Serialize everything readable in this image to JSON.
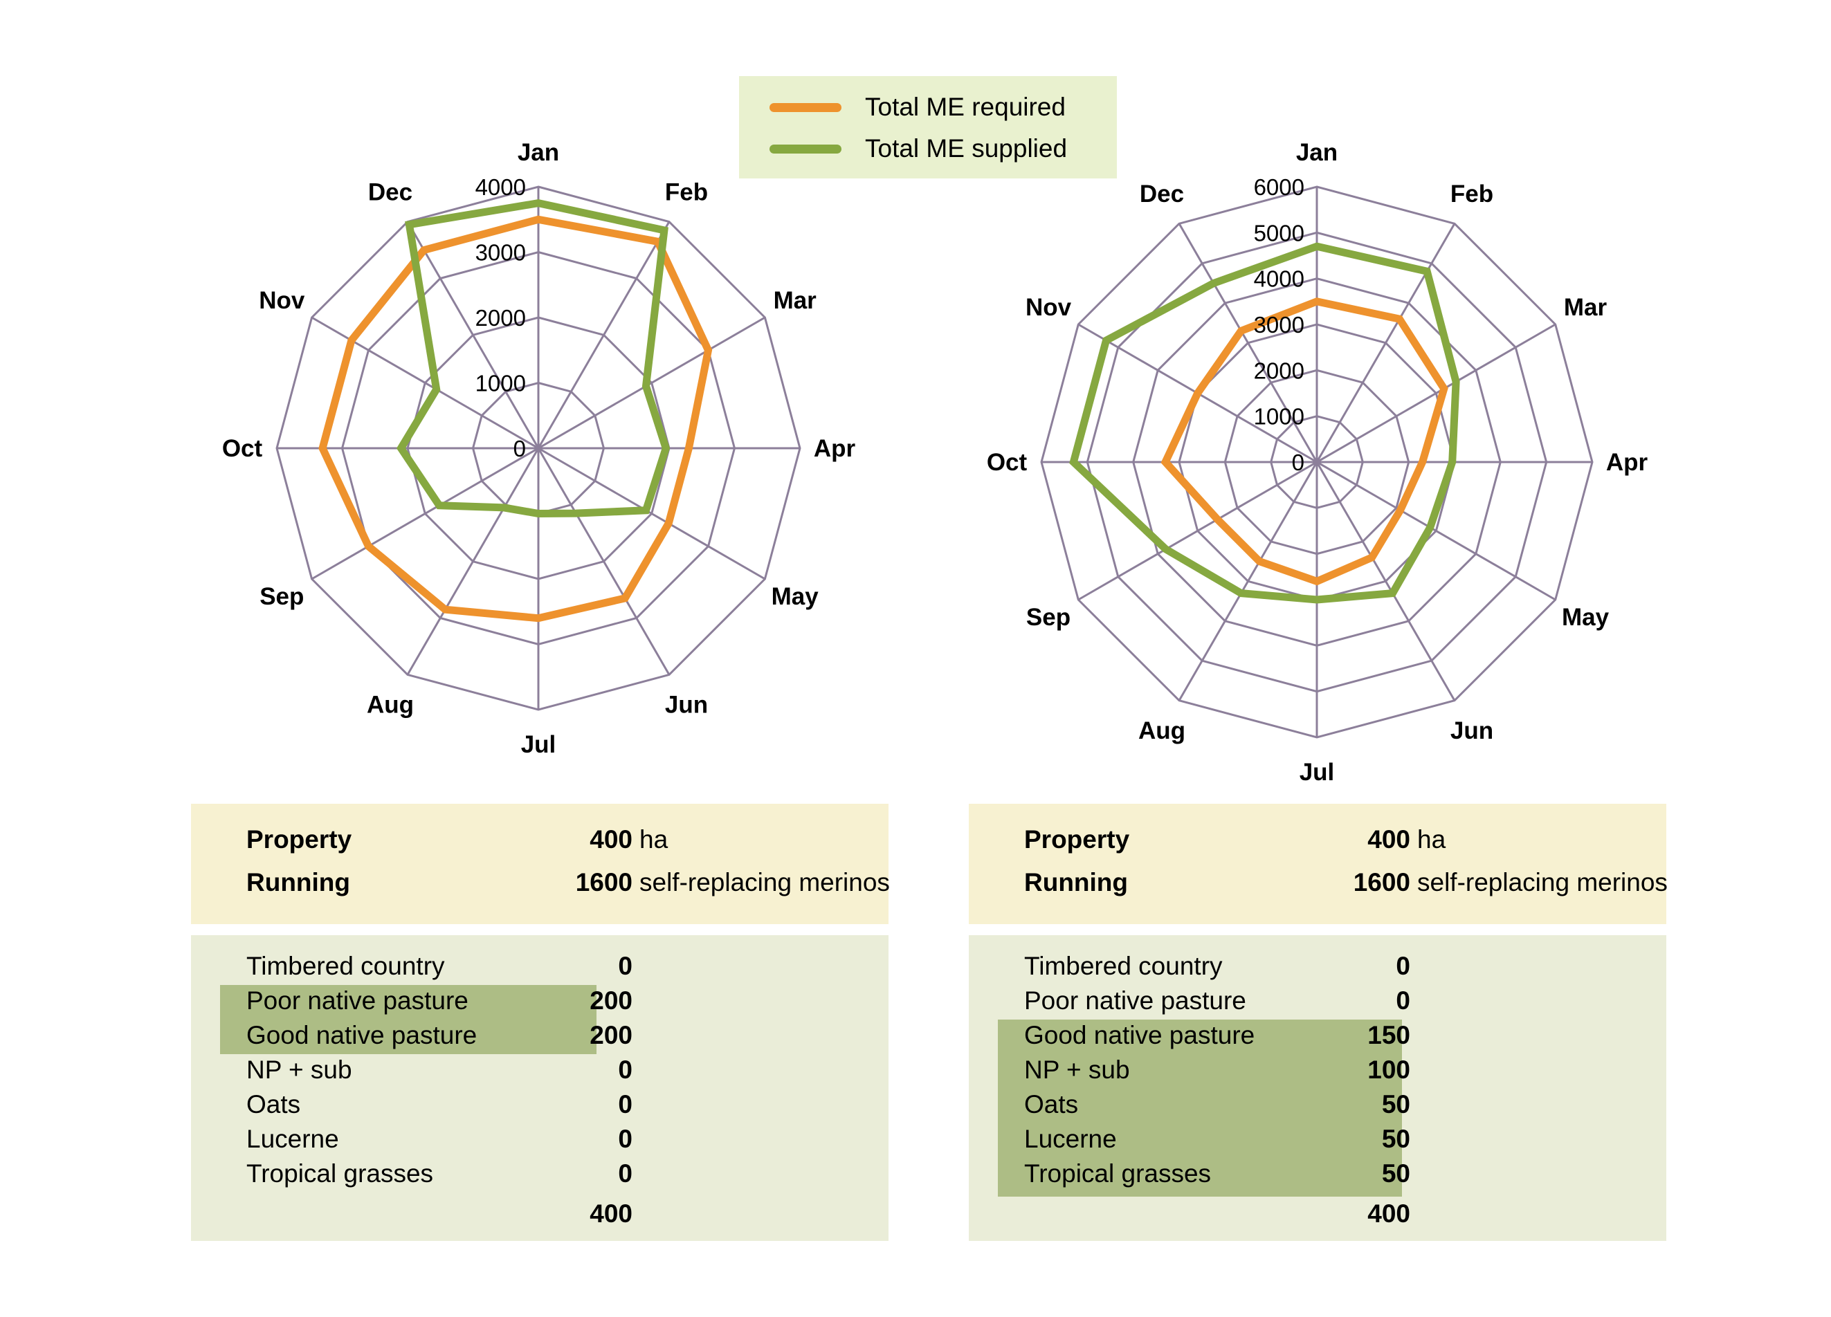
{
  "legend": {
    "required": {
      "label": "Total ME required",
      "color": "#ee922d"
    },
    "supplied": {
      "label": "Total ME supplied",
      "color": "#86a840"
    }
  },
  "chart_data": [
    {
      "type": "radar",
      "categories": [
        "Jan",
        "Feb",
        "Mar",
        "Apr",
        "May",
        "Jun",
        "Jul",
        "Aug",
        "Sep",
        "Oct",
        "Nov",
        "Dec"
      ],
      "rlim": [
        0,
        4000
      ],
      "rticks": [
        0,
        1000,
        2000,
        3000,
        4000
      ],
      "grid": true,
      "series": [
        {
          "name": "Total ME required",
          "color": "#ee922d",
          "values": [
            3500,
            3650,
            3000,
            2300,
            2300,
            2650,
            2600,
            2850,
            3000,
            3300,
            3300,
            3500
          ]
        },
        {
          "name": "Total ME supplied",
          "color": "#86a840",
          "values": [
            3750,
            3850,
            1900,
            1950,
            1900,
            1150,
            1000,
            1050,
            1750,
            2100,
            1800,
            3950
          ]
        }
      ]
    },
    {
      "type": "radar",
      "categories": [
        "Jan",
        "Feb",
        "Mar",
        "Apr",
        "May",
        "Jun",
        "Jul",
        "Aug",
        "Sep",
        "Oct",
        "Nov",
        "Dec"
      ],
      "rlim": [
        0,
        6000
      ],
      "rticks": [
        0,
        1000,
        2000,
        3000,
        4000,
        5000,
        6000
      ],
      "grid": true,
      "series": [
        {
          "name": "Total ME required",
          "color": "#ee922d",
          "values": [
            3500,
            3600,
            3200,
            2300,
            2100,
            2400,
            2600,
            2500,
            2500,
            3300,
            3000,
            3300
          ]
        },
        {
          "name": "Total ME supplied",
          "color": "#86a840",
          "values": [
            4700,
            4800,
            3500,
            2950,
            2850,
            3300,
            3000,
            3300,
            3800,
            5300,
            5300,
            4500
          ]
        }
      ]
    }
  ],
  "panels": [
    {
      "property_label": "Property",
      "property_value": "400",
      "property_unit": "ha",
      "running_label": "Running",
      "running_value": "1600",
      "running_unit": "self-replacing merinos",
      "land": [
        {
          "name": "Timbered country",
          "value": "0"
        },
        {
          "name": "Poor native pasture",
          "value": "200"
        },
        {
          "name": "Good native pasture",
          "value": "200"
        },
        {
          "name": "NP + sub",
          "value": "0"
        },
        {
          "name": "Oats",
          "value": "0"
        },
        {
          "name": "Lucerne",
          "value": "0"
        },
        {
          "name": "Tropical grasses",
          "value": "0"
        }
      ],
      "highlight_rows": [
        1,
        2
      ],
      "total": "400"
    },
    {
      "property_label": "Property",
      "property_value": "400",
      "property_unit": "ha",
      "running_label": "Running",
      "running_value": "1600",
      "running_unit": "self-replacing merinos",
      "land": [
        {
          "name": "Timbered country",
          "value": "0"
        },
        {
          "name": "Poor native pasture",
          "value": "0"
        },
        {
          "name": "Good native pasture",
          "value": "150"
        },
        {
          "name": "NP + sub",
          "value": "100"
        },
        {
          "name": "Oats",
          "value": "50"
        },
        {
          "name": "Lucerne",
          "value": "50"
        },
        {
          "name": "Tropical grasses",
          "value": "50"
        }
      ],
      "highlight_rows": [
        2,
        3,
        4,
        5,
        6
      ],
      "total": "400"
    }
  ]
}
